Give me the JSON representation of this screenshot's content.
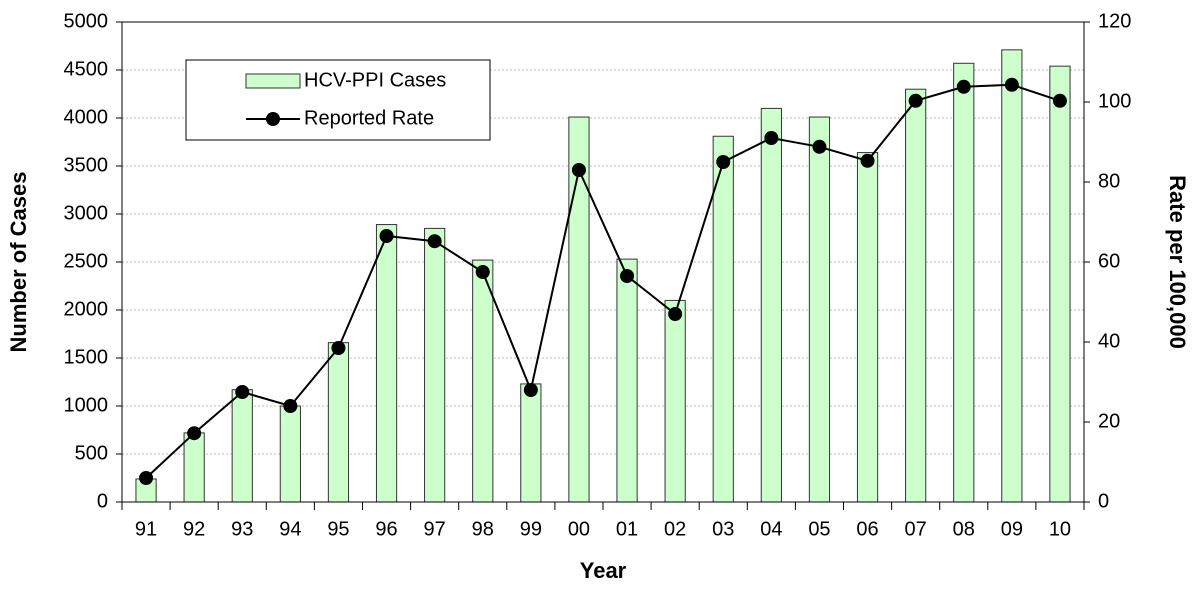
{
  "chart_data": {
    "type": "combo",
    "x_label": "Year",
    "y_label": "Number of Cases",
    "y2_label": "Rate  per 100,000",
    "categories": [
      "91",
      "92",
      "93",
      "94",
      "95",
      "96",
      "97",
      "98",
      "99",
      "00",
      "01",
      "02",
      "03",
      "04",
      "05",
      "06",
      "07",
      "08",
      "09",
      "10"
    ],
    "series": [
      {
        "name": "HCV-PPI Cases",
        "type": "bar",
        "color": "#ccffcc",
        "values": [
          240,
          720,
          1170,
          1000,
          1660,
          2890,
          2850,
          2520,
          1230,
          4010,
          2530,
          2100,
          3810,
          4100,
          4010,
          3640,
          4300,
          4570,
          4710,
          4540
        ]
      },
      {
        "name": "Reported Rate",
        "type": "line",
        "axis": "y2",
        "color": "#000000",
        "values": [
          6,
          17.2,
          27.5,
          24,
          38.5,
          66.5,
          65.2,
          57.5,
          28,
          83,
          56.5,
          47,
          85,
          91,
          88.8,
          85.3,
          100.3,
          103.8,
          104.3,
          100.3
        ]
      }
    ],
    "ylim": [
      0,
      5000
    ],
    "yticks": [
      0,
      500,
      1000,
      1500,
      2000,
      2500,
      3000,
      3500,
      4000,
      4500,
      5000
    ],
    "y2lim": [
      0,
      120
    ],
    "y2ticks": [
      0,
      20,
      40,
      60,
      80,
      100,
      120
    ],
    "grid": true,
    "legend": "upper left"
  }
}
